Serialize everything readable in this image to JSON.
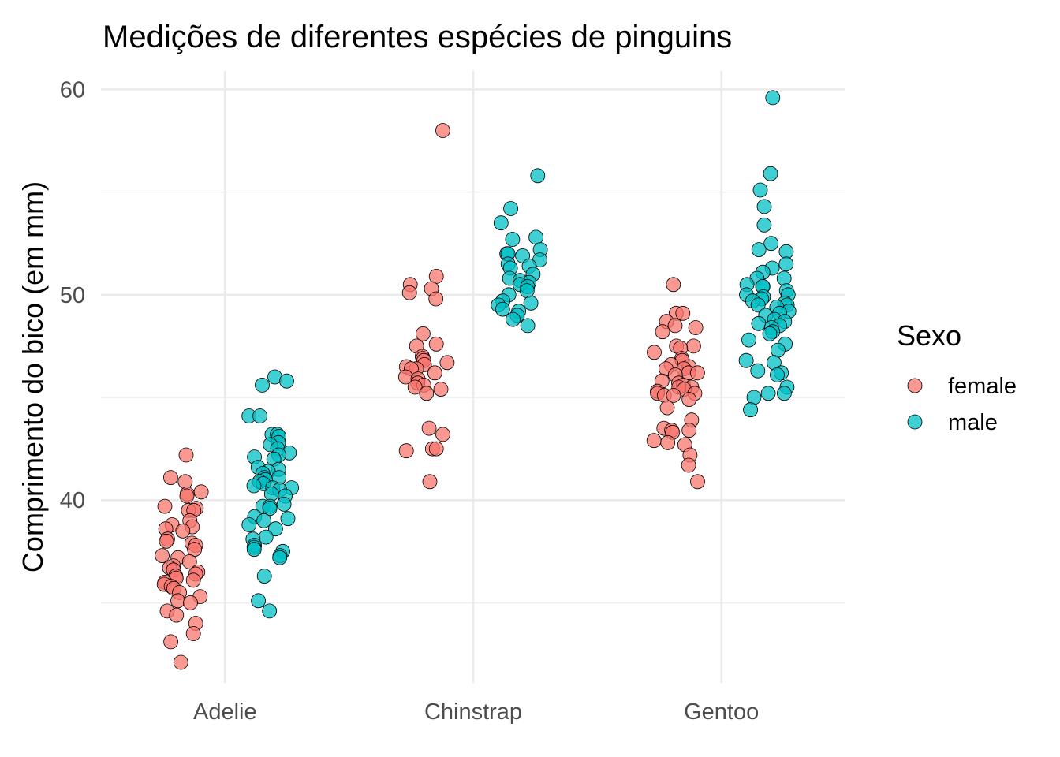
{
  "chart_data": {
    "type": "scatter",
    "title": "Medições de diferentes espécies de pinguins",
    "xlabel": "",
    "ylabel": "Comprimento do bico (em mm)",
    "categories": [
      "Adelie",
      "Chinstrap",
      "Gentoo"
    ],
    "yticks": [
      40,
      50,
      60
    ],
    "ylim": [
      31.1,
      60.9
    ],
    "grid": true,
    "legend": {
      "title": "Sexo",
      "placement": "right",
      "entries": [
        {
          "label": "female",
          "color": "#F8766D"
        },
        {
          "label": "male",
          "color": "#00BFC4"
        }
      ]
    },
    "series": [
      {
        "name": "female",
        "color": "#F8766D",
        "points": [
          [
            "Adelie",
            42.2
          ],
          [
            "Adelie",
            41.1
          ],
          [
            "Adelie",
            40.9
          ],
          [
            "Adelie",
            40.4
          ],
          [
            "Adelie",
            40.3
          ],
          [
            "Adelie",
            40.2
          ],
          [
            "Adelie",
            39.7
          ],
          [
            "Adelie",
            39.6
          ],
          [
            "Adelie",
            39.5
          ],
          [
            "Adelie",
            39.5
          ],
          [
            "Adelie",
            39.0
          ],
          [
            "Adelie",
            38.8
          ],
          [
            "Adelie",
            38.7
          ],
          [
            "Adelie",
            38.6
          ],
          [
            "Adelie",
            38.5
          ],
          [
            "Adelie",
            38.1
          ],
          [
            "Adelie",
            38.0
          ],
          [
            "Adelie",
            37.9
          ],
          [
            "Adelie",
            37.8
          ],
          [
            "Adelie",
            37.6
          ],
          [
            "Adelie",
            37.3
          ],
          [
            "Adelie",
            37.2
          ],
          [
            "Adelie",
            37.0
          ],
          [
            "Adelie",
            36.8
          ],
          [
            "Adelie",
            36.7
          ],
          [
            "Adelie",
            36.6
          ],
          [
            "Adelie",
            36.5
          ],
          [
            "Adelie",
            36.4
          ],
          [
            "Adelie",
            36.3
          ],
          [
            "Adelie",
            36.2
          ],
          [
            "Adelie",
            36.1
          ],
          [
            "Adelie",
            36.0
          ],
          [
            "Adelie",
            35.9
          ],
          [
            "Adelie",
            35.8
          ],
          [
            "Adelie",
            35.7
          ],
          [
            "Adelie",
            35.5
          ],
          [
            "Adelie",
            35.3
          ],
          [
            "Adelie",
            35.1
          ],
          [
            "Adelie",
            35.0
          ],
          [
            "Adelie",
            34.6
          ],
          [
            "Adelie",
            34.4
          ],
          [
            "Adelie",
            34.0
          ],
          [
            "Adelie",
            33.5
          ],
          [
            "Adelie",
            33.1
          ],
          [
            "Adelie",
            32.1
          ],
          [
            "Chinstrap",
            58.0
          ],
          [
            "Chinstrap",
            50.9
          ],
          [
            "Chinstrap",
            50.5
          ],
          [
            "Chinstrap",
            50.3
          ],
          [
            "Chinstrap",
            50.1
          ],
          [
            "Chinstrap",
            49.8
          ],
          [
            "Chinstrap",
            48.1
          ],
          [
            "Chinstrap",
            47.6
          ],
          [
            "Chinstrap",
            47.5
          ],
          [
            "Chinstrap",
            47.0
          ],
          [
            "Chinstrap",
            46.9
          ],
          [
            "Chinstrap",
            46.8
          ],
          [
            "Chinstrap",
            46.7
          ],
          [
            "Chinstrap",
            46.6
          ],
          [
            "Chinstrap",
            46.5
          ],
          [
            "Chinstrap",
            46.4
          ],
          [
            "Chinstrap",
            46.4
          ],
          [
            "Chinstrap",
            46.2
          ],
          [
            "Chinstrap",
            46.0
          ],
          [
            "Chinstrap",
            45.9
          ],
          [
            "Chinstrap",
            45.7
          ],
          [
            "Chinstrap",
            45.6
          ],
          [
            "Chinstrap",
            45.5
          ],
          [
            "Chinstrap",
            45.4
          ],
          [
            "Chinstrap",
            45.2
          ],
          [
            "Chinstrap",
            43.5
          ],
          [
            "Chinstrap",
            43.2
          ],
          [
            "Chinstrap",
            42.5
          ],
          [
            "Chinstrap",
            42.5
          ],
          [
            "Chinstrap",
            42.4
          ],
          [
            "Chinstrap",
            40.9
          ],
          [
            "Gentoo",
            50.5
          ],
          [
            "Gentoo",
            49.1
          ],
          [
            "Gentoo",
            49.1
          ],
          [
            "Gentoo",
            48.7
          ],
          [
            "Gentoo",
            48.5
          ],
          [
            "Gentoo",
            48.4
          ],
          [
            "Gentoo",
            48.2
          ],
          [
            "Gentoo",
            47.5
          ],
          [
            "Gentoo",
            47.5
          ],
          [
            "Gentoo",
            47.4
          ],
          [
            "Gentoo",
            47.2
          ],
          [
            "Gentoo",
            46.9
          ],
          [
            "Gentoo",
            46.8
          ],
          [
            "Gentoo",
            46.6
          ],
          [
            "Gentoo",
            46.5
          ],
          [
            "Gentoo",
            46.4
          ],
          [
            "Gentoo",
            46.4
          ],
          [
            "Gentoo",
            46.2
          ],
          [
            "Gentoo",
            46.2
          ],
          [
            "Gentoo",
            46.1
          ],
          [
            "Gentoo",
            45.8
          ],
          [
            "Gentoo",
            45.7
          ],
          [
            "Gentoo",
            45.6
          ],
          [
            "Gentoo",
            45.5
          ],
          [
            "Gentoo",
            45.5
          ],
          [
            "Gentoo",
            45.4
          ],
          [
            "Gentoo",
            45.3
          ],
          [
            "Gentoo",
            45.2
          ],
          [
            "Gentoo",
            45.2
          ],
          [
            "Gentoo",
            45.1
          ],
          [
            "Gentoo",
            45.1
          ],
          [
            "Gentoo",
            44.9
          ],
          [
            "Gentoo",
            44.5
          ],
          [
            "Gentoo",
            43.9
          ],
          [
            "Gentoo",
            43.5
          ],
          [
            "Gentoo",
            43.4
          ],
          [
            "Gentoo",
            43.4
          ],
          [
            "Gentoo",
            43.3
          ],
          [
            "Gentoo",
            42.9
          ],
          [
            "Gentoo",
            42.8
          ],
          [
            "Gentoo",
            42.7
          ],
          [
            "Gentoo",
            42.2
          ],
          [
            "Gentoo",
            41.7
          ],
          [
            "Gentoo",
            40.9
          ]
        ]
      },
      {
        "name": "male",
        "color": "#00BFC4",
        "points": [
          [
            "Adelie",
            46.0
          ],
          [
            "Adelie",
            45.8
          ],
          [
            "Adelie",
            45.6
          ],
          [
            "Adelie",
            44.1
          ],
          [
            "Adelie",
            44.1
          ],
          [
            "Adelie",
            43.2
          ],
          [
            "Adelie",
            43.2
          ],
          [
            "Adelie",
            43.1
          ],
          [
            "Adelie",
            42.8
          ],
          [
            "Adelie",
            42.7
          ],
          [
            "Adelie",
            42.5
          ],
          [
            "Adelie",
            42.3
          ],
          [
            "Adelie",
            42.2
          ],
          [
            "Adelie",
            42.1
          ],
          [
            "Adelie",
            42.0
          ],
          [
            "Adelie",
            41.6
          ],
          [
            "Adelie",
            41.5
          ],
          [
            "Adelie",
            41.4
          ],
          [
            "Adelie",
            41.3
          ],
          [
            "Adelie",
            41.1
          ],
          [
            "Adelie",
            41.1
          ],
          [
            "Adelie",
            41.0
          ],
          [
            "Adelie",
            40.9
          ],
          [
            "Adelie",
            40.8
          ],
          [
            "Adelie",
            40.7
          ],
          [
            "Adelie",
            40.6
          ],
          [
            "Adelie",
            40.6
          ],
          [
            "Adelie",
            40.5
          ],
          [
            "Adelie",
            40.3
          ],
          [
            "Adelie",
            40.2
          ],
          [
            "Adelie",
            39.8
          ],
          [
            "Adelie",
            39.7
          ],
          [
            "Adelie",
            39.7
          ],
          [
            "Adelie",
            39.6
          ],
          [
            "Adelie",
            39.2
          ],
          [
            "Adelie",
            39.1
          ],
          [
            "Adelie",
            39.0
          ],
          [
            "Adelie",
            38.8
          ],
          [
            "Adelie",
            38.6
          ],
          [
            "Adelie",
            38.2
          ],
          [
            "Adelie",
            38.1
          ],
          [
            "Adelie",
            37.8
          ],
          [
            "Adelie",
            37.7
          ],
          [
            "Adelie",
            37.6
          ],
          [
            "Adelie",
            37.5
          ],
          [
            "Adelie",
            37.3
          ],
          [
            "Adelie",
            37.2
          ],
          [
            "Adelie",
            36.3
          ],
          [
            "Adelie",
            35.1
          ],
          [
            "Adelie",
            34.6
          ],
          [
            "Chinstrap",
            55.8
          ],
          [
            "Chinstrap",
            54.2
          ],
          [
            "Chinstrap",
            53.5
          ],
          [
            "Chinstrap",
            52.8
          ],
          [
            "Chinstrap",
            52.7
          ],
          [
            "Chinstrap",
            52.2
          ],
          [
            "Chinstrap",
            52.0
          ],
          [
            "Chinstrap",
            52.0
          ],
          [
            "Chinstrap",
            51.9
          ],
          [
            "Chinstrap",
            51.7
          ],
          [
            "Chinstrap",
            51.5
          ],
          [
            "Chinstrap",
            51.4
          ],
          [
            "Chinstrap",
            51.3
          ],
          [
            "Chinstrap",
            51.0
          ],
          [
            "Chinstrap",
            50.8
          ],
          [
            "Chinstrap",
            50.7
          ],
          [
            "Chinstrap",
            50.6
          ],
          [
            "Chinstrap",
            50.5
          ],
          [
            "Chinstrap",
            50.4
          ],
          [
            "Chinstrap",
            50.2
          ],
          [
            "Chinstrap",
            50.0
          ],
          [
            "Chinstrap",
            49.7
          ],
          [
            "Chinstrap",
            49.6
          ],
          [
            "Chinstrap",
            49.5
          ],
          [
            "Chinstrap",
            49.3
          ],
          [
            "Chinstrap",
            49.2
          ],
          [
            "Chinstrap",
            49.0
          ],
          [
            "Chinstrap",
            48.8
          ],
          [
            "Chinstrap",
            48.5
          ],
          [
            "Gentoo",
            59.6
          ],
          [
            "Gentoo",
            55.9
          ],
          [
            "Gentoo",
            55.1
          ],
          [
            "Gentoo",
            54.3
          ],
          [
            "Gentoo",
            53.4
          ],
          [
            "Gentoo",
            52.5
          ],
          [
            "Gentoo",
            52.2
          ],
          [
            "Gentoo",
            52.1
          ],
          [
            "Gentoo",
            51.5
          ],
          [
            "Gentoo",
            51.3
          ],
          [
            "Gentoo",
            51.1
          ],
          [
            "Gentoo",
            50.8
          ],
          [
            "Gentoo",
            50.8
          ],
          [
            "Gentoo",
            50.5
          ],
          [
            "Gentoo",
            50.4
          ],
          [
            "Gentoo",
            50.4
          ],
          [
            "Gentoo",
            50.2
          ],
          [
            "Gentoo",
            50.0
          ],
          [
            "Gentoo",
            50.0
          ],
          [
            "Gentoo",
            49.9
          ],
          [
            "Gentoo",
            49.8
          ],
          [
            "Gentoo",
            49.7
          ],
          [
            "Gentoo",
            49.6
          ],
          [
            "Gentoo",
            49.5
          ],
          [
            "Gentoo",
            49.5
          ],
          [
            "Gentoo",
            49.4
          ],
          [
            "Gentoo",
            49.2
          ],
          [
            "Gentoo",
            49.1
          ],
          [
            "Gentoo",
            49.0
          ],
          [
            "Gentoo",
            48.8
          ],
          [
            "Gentoo",
            48.7
          ],
          [
            "Gentoo",
            48.6
          ],
          [
            "Gentoo",
            48.5
          ],
          [
            "Gentoo",
            48.4
          ],
          [
            "Gentoo",
            48.2
          ],
          [
            "Gentoo",
            48.1
          ],
          [
            "Gentoo",
            47.8
          ],
          [
            "Gentoo",
            47.6
          ],
          [
            "Gentoo",
            47.3
          ],
          [
            "Gentoo",
            46.8
          ],
          [
            "Gentoo",
            46.7
          ],
          [
            "Gentoo",
            46.3
          ],
          [
            "Gentoo",
            46.2
          ],
          [
            "Gentoo",
            46.1
          ],
          [
            "Gentoo",
            45.5
          ],
          [
            "Gentoo",
            45.2
          ],
          [
            "Gentoo",
            45.2
          ],
          [
            "Gentoo",
            45.0
          ],
          [
            "Gentoo",
            44.4
          ]
        ]
      }
    ]
  }
}
